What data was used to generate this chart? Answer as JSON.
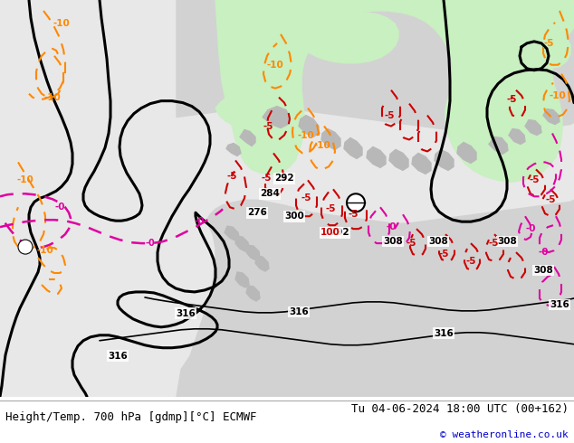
{
  "title_left": "Height/Temp. 700 hPa [gdmp][°C] ECMWF",
  "title_right": "Tu 04-06-2024 18:00 UTC (00+162)",
  "copyright": "© weatheronline.co.uk",
  "bg_color": "#e8e8e8",
  "ocean_color": "#e0e0e0",
  "land_color": "#d2d2d2",
  "green_color": "#c8f0c0",
  "gray_mountain_color": "#b8b8b8",
  "figsize": [
    6.34,
    4.9
  ],
  "dpi": 100,
  "bottom_bar_height": 0.105,
  "title_fontsize": 9,
  "copyright_fontsize": 8,
  "copyright_color": "#0000cc",
  "black_lw": 2.2,
  "colored_lw": 1.5
}
